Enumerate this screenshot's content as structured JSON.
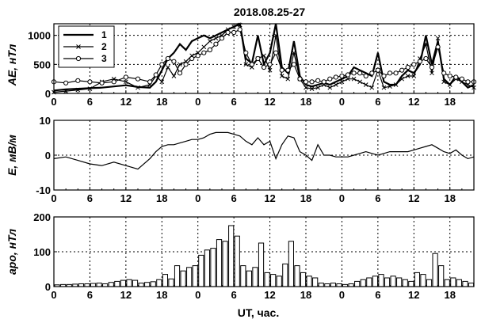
{
  "title": "2018.08.25-27",
  "xlabel": "UT, час.",
  "x_tick_labels": [
    "0",
    "6",
    "12",
    "18",
    "0",
    "6",
    "12",
    "18",
    "0",
    "6",
    "12",
    "18"
  ],
  "chart_data": [
    {
      "type": "line",
      "ylabel": "AE, нТл",
      "ylim": [
        0,
        1200
      ],
      "y_ticks": [
        "0",
        "500",
        "1000"
      ],
      "xlim": [
        0,
        70
      ],
      "grid": true,
      "legend": "top-left",
      "series": [
        {
          "name": "1",
          "marker": "none",
          "x": [
            0,
            2,
            4,
            6,
            8,
            10,
            12,
            14,
            16,
            17,
            18,
            19,
            20,
            21,
            22,
            23,
            24,
            25,
            26,
            27,
            28,
            29,
            30,
            31,
            32,
            33,
            34,
            35,
            36,
            37,
            38,
            39,
            40,
            41,
            42,
            43,
            44,
            45,
            46,
            47,
            48,
            49,
            50,
            51,
            52,
            53,
            54,
            55,
            56,
            57,
            58,
            59,
            60,
            61,
            62,
            63,
            64,
            65,
            66,
            67,
            68,
            69,
            70
          ],
          "y": [
            50,
            70,
            80,
            90,
            100,
            120,
            140,
            110,
            100,
            200,
            400,
            600,
            700,
            850,
            750,
            900,
            950,
            1000,
            950,
            1000,
            1050,
            1100,
            1150,
            1200,
            600,
            520,
            1000,
            500,
            700,
            1200,
            450,
            350,
            900,
            300,
            150,
            120,
            150,
            180,
            150,
            200,
            250,
            300,
            450,
            400,
            350,
            300,
            700,
            200,
            150,
            150,
            300,
            400,
            350,
            500,
            1000,
            500,
            900,
            250,
            150,
            300,
            200,
            100,
            150
          ]
        },
        {
          "name": "2",
          "marker": "x",
          "x": [
            0,
            2,
            4,
            6,
            8,
            10,
            12,
            14,
            16,
            17,
            18,
            19,
            20,
            21,
            22,
            23,
            24,
            25,
            26,
            27,
            28,
            29,
            30,
            31,
            32,
            33,
            34,
            35,
            36,
            37,
            38,
            39,
            40,
            41,
            42,
            43,
            44,
            45,
            46,
            47,
            48,
            49,
            50,
            51,
            52,
            53,
            54,
            55,
            56,
            57,
            58,
            59,
            60,
            61,
            62,
            63,
            64,
            65,
            66,
            67,
            68,
            69,
            70
          ],
          "y": [
            20,
            40,
            60,
            80,
            200,
            250,
            200,
            100,
            150,
            300,
            200,
            450,
            300,
            500,
            550,
            650,
            700,
            800,
            900,
            950,
            1000,
            1100,
            1150,
            1180,
            500,
            450,
            600,
            650,
            400,
            1000,
            300,
            250,
            700,
            250,
            100,
            80,
            100,
            150,
            100,
            150,
            200,
            250,
            250,
            200,
            150,
            100,
            400,
            100,
            120,
            150,
            250,
            300,
            300,
            600,
            850,
            350,
            950,
            200,
            150,
            250,
            200,
            150,
            100
          ]
        },
        {
          "name": "3",
          "marker": "circle",
          "x": [
            0,
            2,
            4,
            6,
            8,
            10,
            12,
            14,
            16,
            17,
            18,
            19,
            20,
            21,
            22,
            23,
            24,
            25,
            26,
            27,
            28,
            29,
            30,
            31,
            32,
            33,
            34,
            35,
            36,
            37,
            38,
            39,
            40,
            41,
            42,
            43,
            44,
            45,
            46,
            47,
            48,
            49,
            50,
            51,
            52,
            53,
            54,
            55,
            56,
            57,
            58,
            59,
            60,
            61,
            62,
            63,
            64,
            65,
            66,
            67,
            68,
            69,
            70
          ],
          "y": [
            200,
            180,
            220,
            200,
            180,
            200,
            280,
            250,
            200,
            320,
            500,
            600,
            550,
            350,
            500,
            600,
            650,
            700,
            750,
            850,
            950,
            1050,
            1050,
            1100,
            700,
            500,
            600,
            450,
            500,
            700,
            400,
            400,
            500,
            250,
            200,
            200,
            220,
            200,
            250,
            280,
            300,
            320,
            350,
            350,
            300,
            350,
            400,
            300,
            350,
            350,
            400,
            450,
            500,
            550,
            600,
            450,
            800,
            350,
            300,
            280,
            250,
            200,
            200
          ]
        }
      ]
    },
    {
      "type": "line",
      "ylabel": "E, мВ/м",
      "ylim": [
        -10,
        10
      ],
      "y_ticks": [
        "-10",
        "0",
        "10"
      ],
      "xlim": [
        0,
        70
      ],
      "grid": true,
      "series": [
        {
          "name": "",
          "x": [
            0,
            2,
            4,
            6,
            8,
            10,
            12,
            14,
            16,
            17,
            18,
            19,
            20,
            21,
            22,
            23,
            24,
            25,
            26,
            27,
            28,
            29,
            30,
            31,
            32,
            33,
            34,
            35,
            36,
            37,
            38,
            39,
            40,
            41,
            42,
            43,
            44,
            45,
            46,
            47,
            48,
            49,
            50,
            51,
            52,
            53,
            54,
            55,
            56,
            57,
            58,
            59,
            60,
            61,
            62,
            63,
            64,
            65,
            66,
            67,
            68,
            69,
            70
          ],
          "y": [
            -1,
            -0.5,
            -1.5,
            -2.5,
            -3,
            -2,
            -3,
            -4,
            -1,
            1,
            2.5,
            3,
            3,
            3.5,
            4,
            4.5,
            4.5,
            5,
            6,
            6.5,
            6.5,
            6.5,
            6,
            5.5,
            4,
            3,
            5,
            3,
            4,
            -1,
            3,
            5.5,
            5,
            1,
            0,
            -1.5,
            3,
            0,
            0,
            -0.5,
            -0.5,
            -0.5,
            0,
            0.5,
            1,
            0.5,
            0,
            0.5,
            1,
            1,
            1,
            1,
            1.5,
            2,
            2.5,
            3,
            2,
            1,
            0.5,
            1.5,
            0,
            -1,
            -0.5
          ]
        }
      ]
    },
    {
      "type": "bar",
      "ylabel": "apo, нТл",
      "ylim": [
        0,
        200
      ],
      "y_ticks": [
        "0",
        "100",
        "200"
      ],
      "xlim": [
        0,
        70
      ],
      "grid": true,
      "x": [
        0,
        1,
        2,
        3,
        4,
        5,
        6,
        7,
        8,
        9,
        10,
        11,
        12,
        13,
        14,
        15,
        16,
        17,
        18,
        19,
        20,
        21,
        22,
        23,
        24,
        25,
        26,
        27,
        28,
        29,
        30,
        31,
        32,
        33,
        34,
        35,
        36,
        37,
        38,
        39,
        40,
        41,
        42,
        43,
        44,
        45,
        46,
        47,
        48,
        49,
        50,
        51,
        52,
        53,
        54,
        55,
        56,
        57,
        58,
        59,
        60,
        61,
        62,
        63,
        64,
        65,
        66,
        67,
        68,
        69
      ],
      "values": [
        5,
        6,
        6,
        7,
        8,
        8,
        9,
        10,
        8,
        12,
        15,
        18,
        20,
        18,
        10,
        12,
        14,
        20,
        35,
        22,
        60,
        45,
        55,
        60,
        90,
        105,
        110,
        135,
        130,
        175,
        145,
        60,
        45,
        55,
        125,
        40,
        35,
        30,
        65,
        130,
        60,
        40,
        30,
        25,
        10,
        8,
        10,
        8,
        6,
        8,
        15,
        20,
        25,
        30,
        35,
        25,
        30,
        25,
        20,
        15,
        40,
        35,
        20,
        95,
        60,
        20,
        25,
        20,
        15,
        10
      ]
    }
  ]
}
